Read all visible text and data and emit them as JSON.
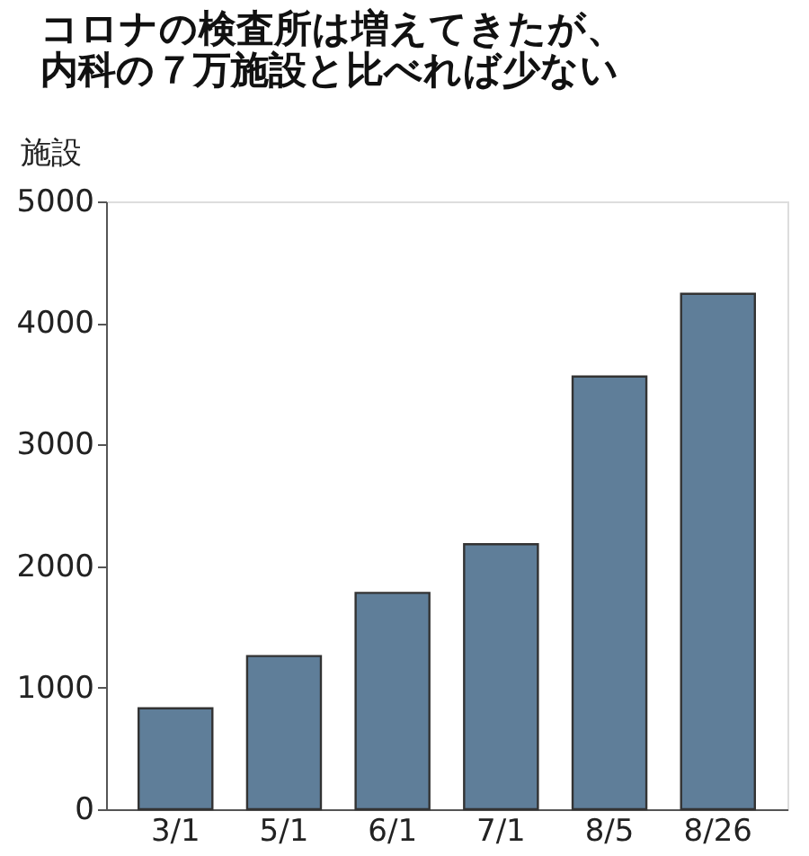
{
  "chart_data": {
    "type": "bar",
    "title": "コロナの検査所は増えてきたが、内科の７万施設と比べれば少ない",
    "ylabel": "施設",
    "categories": [
      "3/1",
      "5/1",
      "6/1",
      "7/1",
      "8/5",
      "8/26"
    ],
    "values": [
      830,
      1260,
      1780,
      2180,
      3560,
      4240
    ],
    "color": "#5f7e99",
    "ylim": [
      0,
      5000
    ],
    "yticks": [
      0,
      1000,
      2000,
      3000,
      4000,
      5000
    ],
    "grid": false
  }
}
